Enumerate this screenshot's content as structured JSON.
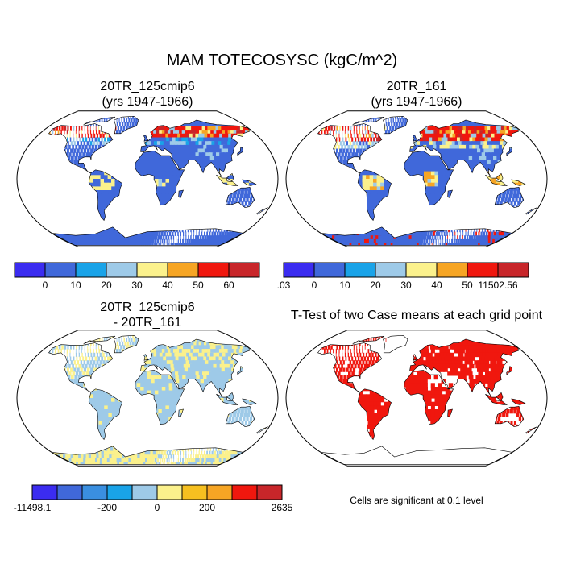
{
  "title": "MAM TOTECOSYSC (kgC/m^2)",
  "panels": [
    {
      "title_line1": "20TR_125cmip6",
      "title_line2": "(yrs 1947-1966)"
    },
    {
      "title_line1": "20TR_161",
      "title_line2": "(yrs 1947-1966)"
    },
    {
      "title_line1": "20TR_125cmip6",
      "title_line2": "- 20TR_161"
    },
    {
      "title_line1": "T-Test of two Case means at each grid point",
      "title_line2": ""
    }
  ],
  "colorbars": [
    {
      "colors": [
        "#3b2cf0",
        "#4068da",
        "#19a3e8",
        "#9ecae8",
        "#fbf18c",
        "#f6a524",
        "#f0170e",
        "#c8262a"
      ],
      "labels": [
        "0",
        "10",
        "20",
        "30",
        "40",
        "50",
        "60"
      ]
    },
    {
      "colors": [
        "#3b2cf0",
        "#4068da",
        "#19a3e8",
        "#9ecae8",
        "#fbf18c",
        "#f6a524",
        "#f0170e",
        "#c8262a"
      ],
      "labels": [
        ".03",
        "0",
        "10",
        "20",
        "30",
        "40",
        "50",
        "11502.56"
      ]
    },
    {
      "colors": [
        "#3b2cf0",
        "#4068da",
        "#3a8fe0",
        "#19a3e8",
        "#9ecae8",
        "#fbf18c",
        "#f6c020",
        "#f6a524",
        "#f0170e",
        "#c8262a"
      ],
      "labels": [
        "-11498.1",
        "-200",
        "0",
        "200",
        "2635"
      ]
    }
  ],
  "significance_note": "Cells are significant at 0.1 level",
  "colors": {
    "ocean": "#ffffff",
    "land_base_map1": "#4068da",
    "land_diff": "#9ecae8",
    "significant": "#f0170e",
    "outline": "#000000"
  }
}
